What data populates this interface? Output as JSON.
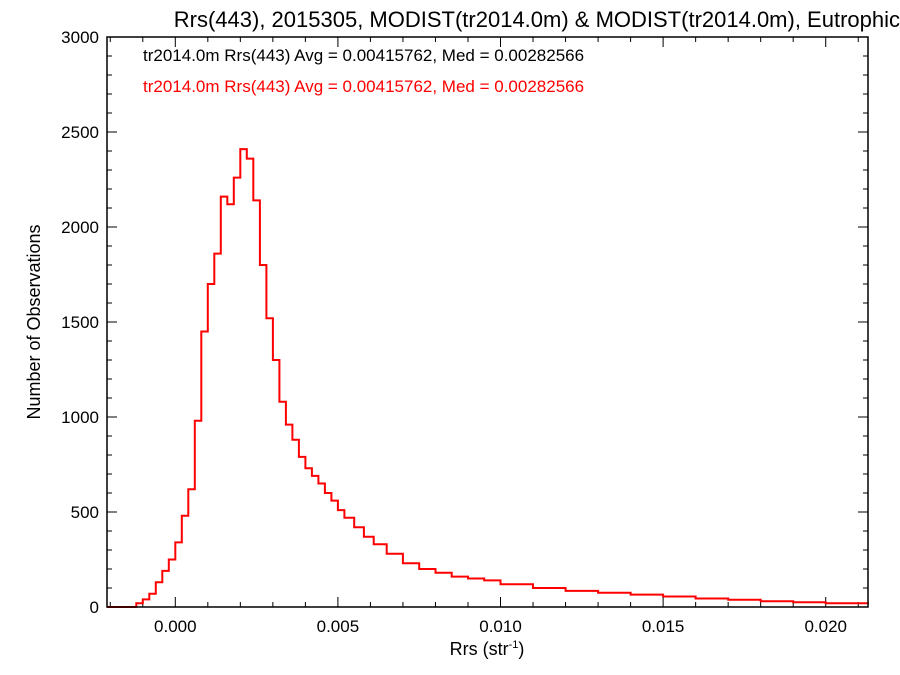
{
  "chart_data": {
    "type": "histogram",
    "title": "Rrs(443), 2015305, MODIST(tr2014.0m) & MODIST(tr2014.0m), Eutrophic",
    "xlabel": "Rrs (str",
    "xlabel_sup": "-1",
    "xlabel_end": ")",
    "ylabel": "Number of Observations",
    "xlim": [
      -0.0021,
      0.0213
    ],
    "ylim": [
      0,
      3000
    ],
    "x_ticks": [
      0.0,
      0.005,
      0.01,
      0.015,
      0.02
    ],
    "x_tick_labels": [
      "0.000",
      "0.005",
      "0.010",
      "0.015",
      "0.020"
    ],
    "y_ticks": [
      0,
      500,
      1000,
      1500,
      2000,
      2500,
      3000
    ],
    "y_tick_labels": [
      "0",
      "500",
      "1000",
      "1500",
      "2000",
      "2500",
      "3000"
    ],
    "grid": false,
    "legend_position": "top-left",
    "legend": [
      {
        "text": "tr2014.0m Rrs(443) Avg = 0.00415762, Med = 0.00282566",
        "color": "#000000"
      },
      {
        "text": "tr2014.0m Rrs(443) Avg = 0.00415762, Med = 0.00282566",
        "color": "#ff0000"
      }
    ],
    "series": [
      {
        "color": "#ff0000",
        "x": [
          -0.0021,
          -0.0012,
          -0.001,
          -0.0008,
          -0.0006,
          -0.0004,
          -0.0002,
          0.0,
          0.0002,
          0.0004,
          0.0006,
          0.0008,
          0.001,
          0.0012,
          0.0014,
          0.0016,
          0.0018,
          0.002,
          0.0022,
          0.0024,
          0.0026,
          0.0028,
          0.003,
          0.0032,
          0.0034,
          0.0036,
          0.0038,
          0.004,
          0.0042,
          0.0044,
          0.0046,
          0.0048,
          0.005,
          0.0052,
          0.0055,
          0.0058,
          0.0061,
          0.0065,
          0.007,
          0.0075,
          0.008,
          0.0085,
          0.009,
          0.0095,
          0.01,
          0.011,
          0.012,
          0.013,
          0.014,
          0.015,
          0.016,
          0.017,
          0.018,
          0.019,
          0.02,
          0.0213
        ],
        "y": [
          0,
          20,
          40,
          70,
          130,
          190,
          250,
          340,
          480,
          620,
          980,
          1450,
          1700,
          1860,
          2160,
          2120,
          2260,
          2410,
          2360,
          2140,
          1800,
          1520,
          1300,
          1080,
          960,
          880,
          790,
          730,
          690,
          650,
          600,
          560,
          510,
          470,
          420,
          370,
          330,
          280,
          230,
          200,
          180,
          160,
          150,
          140,
          120,
          100,
          85,
          75,
          65,
          55,
          45,
          38,
          30,
          25,
          20,
          15
        ]
      }
    ]
  }
}
